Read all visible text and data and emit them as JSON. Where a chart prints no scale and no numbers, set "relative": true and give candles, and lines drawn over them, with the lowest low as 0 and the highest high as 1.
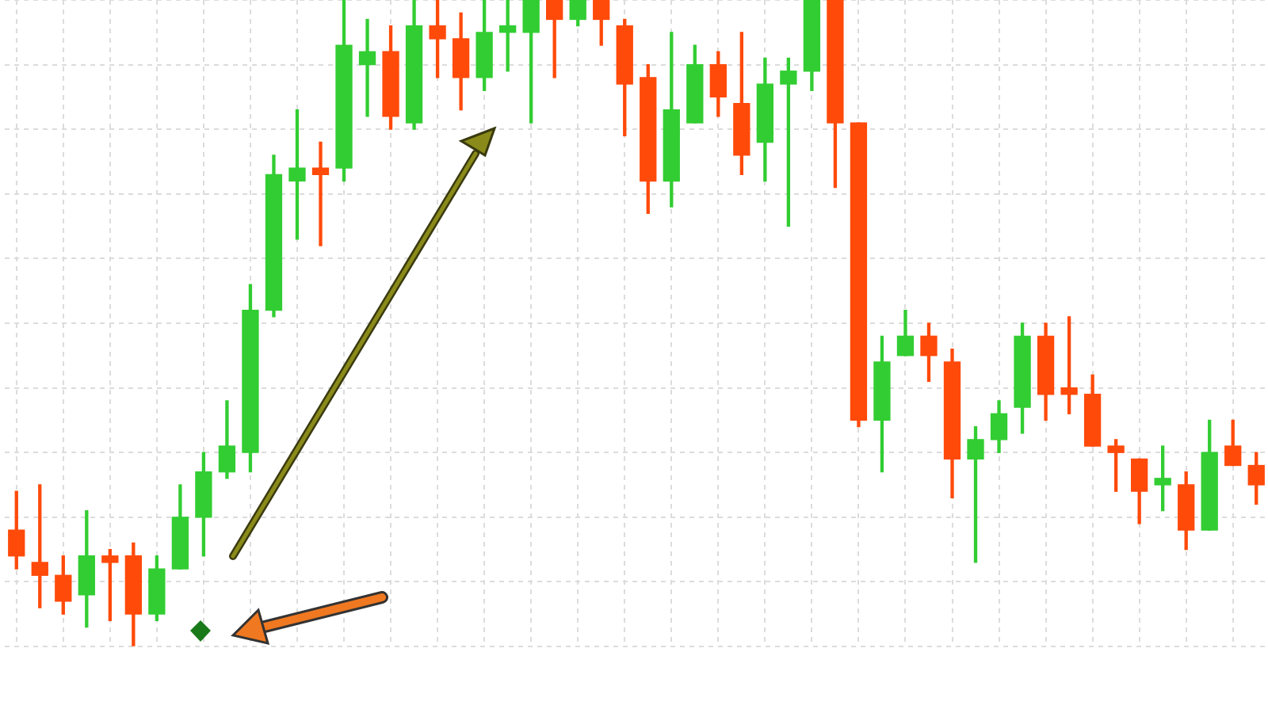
{
  "chart_data": {
    "type": "candlestick",
    "relative": true,
    "grid": true,
    "categories": [
      null,
      null,
      null,
      null,
      null,
      null,
      null,
      null,
      null,
      null,
      null,
      null,
      null,
      null,
      null,
      null,
      null,
      null,
      null,
      null,
      null,
      null,
      null,
      null,
      null,
      null,
      null,
      null,
      null,
      null,
      null,
      null,
      null,
      null,
      null,
      null,
      null,
      null,
      null,
      null,
      null,
      null,
      null,
      null,
      null,
      null,
      null,
      null,
      null,
      null,
      null,
      null,
      null,
      null
    ],
    "ohlc": [
      [
        0.18,
        0.24,
        0.12,
        0.14
      ],
      [
        0.13,
        0.25,
        0.06,
        0.11
      ],
      [
        0.11,
        0.14,
        0.05,
        0.07
      ],
      [
        0.08,
        0.21,
        0.03,
        0.14
      ],
      [
        0.14,
        0.15,
        0.04,
        0.13
      ],
      [
        0.14,
        0.16,
        0,
        0.05
      ],
      [
        0.05,
        0.14,
        0.04,
        0.12
      ],
      [
        0.12,
        0.25,
        0.12,
        0.2
      ],
      [
        0.2,
        0.3,
        0.14,
        0.27
      ],
      [
        0.27,
        0.38,
        0.26,
        0.31
      ],
      [
        0.3,
        0.56,
        0.27,
        0.52
      ],
      [
        0.52,
        0.76,
        0.51,
        0.73
      ],
      [
        0.72,
        0.83,
        0.63,
        0.74
      ],
      [
        0.74,
        0.78,
        0.62,
        0.73
      ],
      [
        0.74,
        1,
        0.72,
        0.93
      ],
      [
        0.9,
        0.97,
        0.82,
        0.92
      ],
      [
        0.92,
        0.96,
        0.8,
        0.82
      ],
      [
        0.81,
        1,
        0.8,
        0.96
      ],
      [
        0.96,
        1,
        0.88,
        0.94
      ],
      [
        0.94,
        0.98,
        0.83,
        0.88
      ],
      [
        0.88,
        1,
        0.86,
        0.95
      ],
      [
        0.95,
        1,
        0.89,
        0.96
      ],
      [
        0.95,
        1,
        0.81,
        1
      ],
      [
        1,
        1,
        0.88,
        0.97
      ],
      [
        0.97,
        1,
        0.96,
        1
      ],
      [
        1,
        1,
        0.93,
        0.97
      ],
      [
        0.96,
        0.97,
        0.79,
        0.87
      ],
      [
        0.88,
        0.9,
        0.67,
        0.72
      ],
      [
        0.72,
        0.95,
        0.68,
        0.83
      ],
      [
        0.81,
        0.93,
        0.81,
        0.9
      ],
      [
        0.9,
        0.92,
        0.82,
        0.85
      ],
      [
        0.84,
        0.95,
        0.73,
        0.76
      ],
      [
        0.78,
        0.91,
        0.72,
        0.87
      ],
      [
        0.87,
        0.91,
        0.65,
        0.89
      ],
      [
        0.89,
        1,
        0.86,
        1
      ],
      [
        1,
        1,
        0.71,
        0.81
      ],
      [
        0.81,
        0.81,
        0.34,
        0.35
      ],
      [
        0.35,
        0.48,
        0.27,
        0.44
      ],
      [
        0.45,
        0.52,
        0.45,
        0.48
      ],
      [
        0.48,
        0.5,
        0.41,
        0.45
      ],
      [
        0.44,
        0.46,
        0.23,
        0.29
      ],
      [
        0.29,
        0.34,
        0.13,
        0.32
      ],
      [
        0.32,
        0.38,
        0.3,
        0.36
      ],
      [
        0.37,
        0.5,
        0.33,
        0.48
      ],
      [
        0.48,
        0.5,
        0.35,
        0.39
      ],
      [
        0.4,
        0.51,
        0.36,
        0.39
      ],
      [
        0.39,
        0.42,
        0.31,
        0.31
      ],
      [
        0.31,
        0.32,
        0.24,
        0.3
      ],
      [
        0.29,
        0.29,
        0.19,
        0.24
      ],
      [
        0.25,
        0.31,
        0.21,
        0.26
      ],
      [
        0.25,
        0.27,
        0.15,
        0.18
      ],
      [
        0.18,
        0.35,
        0.18,
        0.3
      ],
      [
        0.31,
        0.35,
        0.28,
        0.28
      ],
      [
        0.28,
        0.3,
        0.22,
        0.25
      ]
    ],
    "colors": [
      "#ff4a0a",
      "#ff4a0a",
      "#ff4a0a",
      "#32cd32",
      "#ff4a0a",
      "#ff4a0a",
      "#32cd32",
      "#32cd32",
      "#32cd32",
      "#32cd32",
      "#32cd32",
      "#32cd32",
      "#32cd32",
      "#ff4a0a",
      "#32cd32",
      "#32cd32",
      "#ff4a0a",
      "#32cd32",
      "#ff4a0a",
      "#ff4a0a",
      "#32cd32",
      "#32cd32",
      "#32cd32",
      "#ff4a0a",
      "#32cd32",
      "#ff4a0a",
      "#ff4a0a",
      "#ff4a0a",
      "#32cd32",
      "#32cd32",
      "#ff4a0a",
      "#ff4a0a",
      "#32cd32",
      "#32cd32",
      "#32cd32",
      "#ff4a0a",
      "#ff4a0a",
      "#32cd32",
      "#32cd32",
      "#ff4a0a",
      "#ff4a0a",
      "#32cd32",
      "#32cd32",
      "#32cd32",
      "#ff4a0a",
      "#ff4a0a",
      "#ff4a0a",
      "#ff4a0a",
      "#ff4a0a",
      "#32cd32",
      "#ff4a0a",
      "#32cd32",
      "#ff4a0a",
      "#ff4a0a"
    ]
  }
}
